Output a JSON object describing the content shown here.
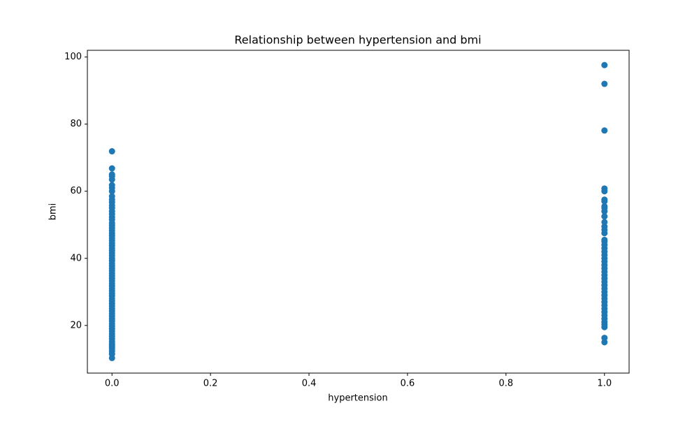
{
  "chart_data": {
    "type": "scatter",
    "title": "Relationship between hypertension and bmi",
    "x_label": "hypertension",
    "y_label": "bmi",
    "color": "#1f77b4",
    "x": [
      0,
      0,
      0,
      0,
      0,
      0,
      0,
      0,
      0,
      0,
      0,
      0,
      0,
      0,
      0,
      0,
      0,
      0,
      0,
      0,
      0,
      0,
      0,
      0,
      0,
      0,
      0,
      0,
      0,
      0,
      0,
      0,
      0,
      0,
      0,
      0,
      0,
      0,
      0,
      0,
      0,
      0,
      0,
      0,
      0,
      0,
      0,
      0,
      0,
      0,
      0,
      0,
      0,
      0,
      0,
      0,
      0,
      0,
      0,
      0,
      0,
      0,
      0,
      0,
      0,
      0,
      0,
      0,
      0,
      0,
      0,
      0,
      1,
      1,
      1,
      1,
      1,
      1,
      1,
      1,
      1,
      1,
      1,
      1,
      1,
      1,
      1,
      1,
      1,
      1,
      1,
      1,
      1,
      1,
      1,
      1,
      1,
      1,
      1,
      1,
      1,
      1,
      1,
      1,
      1,
      1,
      1,
      1,
      1,
      1,
      1,
      1,
      1,
      1,
      1,
      1,
      1
    ],
    "values": [
      10.3,
      11.5,
      12.3,
      13.0,
      13.5,
      14.0,
      14.5,
      15.2,
      16,
      16.8,
      17.5,
      18.3,
      19,
      19.8,
      20.5,
      21.3,
      22,
      22.8,
      23.5,
      24.3,
      25,
      25.8,
      26.5,
      27.3,
      28,
      28.8,
      29.5,
      30.3,
      31,
      31.8,
      32.5,
      33.3,
      34,
      34.8,
      35.5,
      36.3,
      37,
      37.8,
      38.5,
      39.3,
      40,
      40.8,
      41.5,
      42.3,
      43,
      43.8,
      44.5,
      45.3,
      46,
      46.8,
      47.5,
      48.3,
      49,
      49.8,
      50.5,
      51.5,
      52.3,
      53.2,
      54,
      55,
      55.8,
      56.7,
      57.5,
      58.5,
      60,
      61,
      61.8,
      63.5,
      64.5,
      65,
      66.8,
      71.9,
      15.0,
      16.3,
      19.5,
      20.3,
      21,
      22,
      23,
      24,
      25,
      26,
      27,
      28,
      29,
      30,
      31,
      32,
      33,
      34,
      35,
      36,
      37,
      38,
      39,
      40,
      41,
      42,
      43,
      44,
      45,
      45.5,
      47.5,
      48.5,
      49.5,
      50.8,
      52.5,
      54,
      55,
      55.5,
      57,
      57.5,
      60,
      60.8,
      78.1,
      92.0,
      97.6
    ],
    "xlim": [
      -0.05,
      1.05
    ],
    "xticks": [
      {
        "value": 0,
        "label": "0.0"
      },
      0.2,
      0.4,
      0.6,
      0.8,
      {
        "value": 1,
        "label": "1.0"
      }
    ],
    "ylim": [
      5.8,
      102.0
    ],
    "yticks": [
      20,
      40,
      60,
      80,
      100
    ]
  }
}
